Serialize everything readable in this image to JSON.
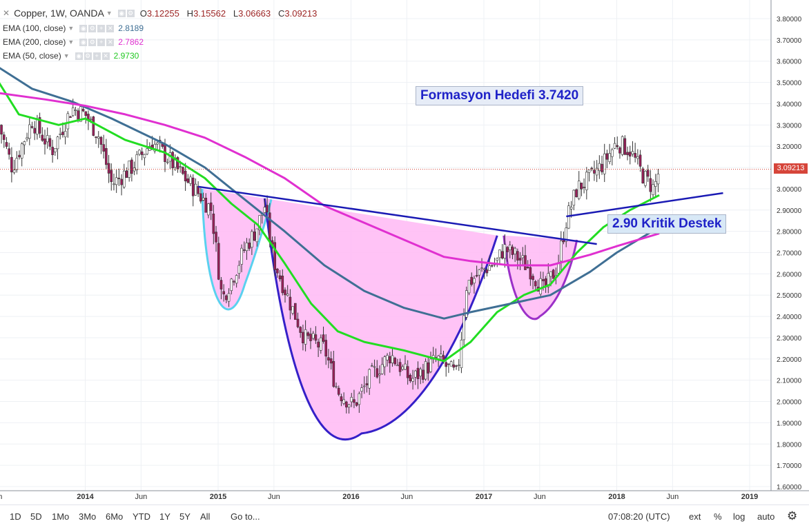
{
  "header": {
    "symbol": "Copper, 1W, OANDA",
    "ohlc": {
      "o_label": "O",
      "o": "3.12255",
      "h_label": "H",
      "h": "3.15562",
      "l_label": "L",
      "l": "3.06663",
      "c_label": "C",
      "c": "3.09213"
    }
  },
  "indicators": [
    {
      "label": "EMA (100, close)",
      "value": "2.8189",
      "color": "#3f6f94"
    },
    {
      "label": "EMA (200, close)",
      "value": "2.7862",
      "color": "#e030d0"
    },
    {
      "label": "EMA (50, close)",
      "value": "2.9730",
      "color": "#22dd22"
    }
  ],
  "annotations": {
    "target": "Formasyon Hedefi 3.7420",
    "support": "2.90 Kritik Destek"
  },
  "last_price": "3.09213",
  "toolbar": {
    "ranges": [
      "1D",
      "5D",
      "1Mo",
      "3Mo",
      "6Mo",
      "YTD",
      "1Y",
      "5Y",
      "All"
    ],
    "goto": "Go to...",
    "time": "07:08:20 (UTC)",
    "right": [
      "ext",
      "%",
      "log",
      "auto"
    ]
  },
  "colors": {
    "up_candle": "#ffffff",
    "down_candle": "#9a1f5a",
    "pattern_fill": "#ffb8f4",
    "trend_line": "#1a1ab4",
    "cup_outline": "#3520c8",
    "left_cup": "#5ad1ef",
    "handle": "#9b30c8"
  },
  "chart_data": {
    "type": "line",
    "title": "Copper, 1W, OANDA",
    "x_ticks": [
      "Jun",
      "2014",
      "Jun",
      "2015",
      "Jun",
      "2016",
      "Jun",
      "2017",
      "Jun",
      "2018",
      "Jun",
      "2019"
    ],
    "y_ticks": [
      "3.80000",
      "3.70000",
      "3.60000",
      "3.50000",
      "3.40000",
      "3.30000",
      "3.20000",
      "3.10000",
      "3.00000",
      "2.90000",
      "2.80000",
      "2.70000",
      "2.60000",
      "2.50000",
      "2.40000",
      "2.30000",
      "2.20000",
      "2.10000",
      "2.00000",
      "1.90000",
      "1.80000",
      "1.70000",
      "1.60000"
    ],
    "ylim": [
      1.6,
      3.8
    ],
    "price_close_path": [
      [
        2013.35,
        3.3
      ],
      [
        2013.45,
        3.1
      ],
      [
        2013.6,
        3.32
      ],
      [
        2013.75,
        3.18
      ],
      [
        2013.9,
        3.38
      ],
      [
        2014.0,
        3.35
      ],
      [
        2014.1,
        3.25
      ],
      [
        2014.2,
        3.02
      ],
      [
        2014.35,
        3.1
      ],
      [
        2014.5,
        3.22
      ],
      [
        2014.6,
        3.16
      ],
      [
        2014.75,
        3.05
      ],
      [
        2014.85,
        2.98
      ],
      [
        2014.95,
        2.9
      ],
      [
        2015.03,
        2.48
      ],
      [
        2015.12,
        2.6
      ],
      [
        2015.2,
        2.72
      ],
      [
        2015.28,
        2.8
      ],
      [
        2015.35,
        2.92
      ],
      [
        2015.42,
        2.66
      ],
      [
        2015.55,
        2.45
      ],
      [
        2015.65,
        2.3
      ],
      [
        2015.8,
        2.25
      ],
      [
        2015.9,
        2.05
      ],
      [
        2016.02,
        1.98
      ],
      [
        2016.15,
        2.12
      ],
      [
        2016.3,
        2.22
      ],
      [
        2016.45,
        2.1
      ],
      [
        2016.55,
        2.15
      ],
      [
        2016.65,
        2.2
      ],
      [
        2016.8,
        2.12
      ],
      [
        2016.87,
        2.55
      ],
      [
        2017.0,
        2.62
      ],
      [
        2017.1,
        2.66
      ],
      [
        2017.15,
        2.72
      ],
      [
        2017.25,
        2.68
      ],
      [
        2017.35,
        2.62
      ],
      [
        2017.45,
        2.52
      ],
      [
        2017.55,
        2.63
      ],
      [
        2017.62,
        2.85
      ],
      [
        2017.7,
        3.0
      ],
      [
        2017.8,
        3.05
      ],
      [
        2017.9,
        3.12
      ],
      [
        2018.0,
        3.22
      ],
      [
        2018.1,
        3.18
      ],
      [
        2018.2,
        3.06
      ],
      [
        2018.28,
        3.0
      ],
      [
        2018.32,
        3.09
      ]
    ],
    "series": [
      {
        "name": "EMA (50, close)",
        "color": "#22dd22",
        "points": [
          [
            2013.35,
            3.5
          ],
          [
            2013.5,
            3.35
          ],
          [
            2013.8,
            3.3
          ],
          [
            2014.0,
            3.33
          ],
          [
            2014.3,
            3.23
          ],
          [
            2014.6,
            3.17
          ],
          [
            2014.9,
            3.05
          ],
          [
            2015.1,
            2.93
          ],
          [
            2015.3,
            2.83
          ],
          [
            2015.5,
            2.65
          ],
          [
            2015.7,
            2.46
          ],
          [
            2015.9,
            2.33
          ],
          [
            2016.1,
            2.28
          ],
          [
            2016.4,
            2.24
          ],
          [
            2016.7,
            2.19
          ],
          [
            2016.9,
            2.28
          ],
          [
            2017.1,
            2.42
          ],
          [
            2017.3,
            2.5
          ],
          [
            2017.5,
            2.55
          ],
          [
            2017.7,
            2.7
          ],
          [
            2017.9,
            2.82
          ],
          [
            2018.1,
            2.9
          ],
          [
            2018.32,
            2.97
          ]
        ]
      },
      {
        "name": "EMA (100, close)",
        "color": "#3f6f94",
        "points": [
          [
            2013.35,
            3.57
          ],
          [
            2013.6,
            3.47
          ],
          [
            2013.9,
            3.41
          ],
          [
            2014.2,
            3.33
          ],
          [
            2014.6,
            3.21
          ],
          [
            2014.9,
            3.1
          ],
          [
            2015.1,
            3.0
          ],
          [
            2015.3,
            2.9
          ],
          [
            2015.5,
            2.8
          ],
          [
            2015.8,
            2.64
          ],
          [
            2016.1,
            2.52
          ],
          [
            2016.4,
            2.44
          ],
          [
            2016.7,
            2.39
          ],
          [
            2016.9,
            2.42
          ],
          [
            2017.2,
            2.46
          ],
          [
            2017.5,
            2.5
          ],
          [
            2017.8,
            2.61
          ],
          [
            2018.0,
            2.7
          ],
          [
            2018.32,
            2.82
          ]
        ]
      },
      {
        "name": "EMA (200, close)",
        "color": "#e030d0",
        "points": [
          [
            2013.35,
            3.45
          ],
          [
            2013.7,
            3.42
          ],
          [
            2014.0,
            3.39
          ],
          [
            2014.3,
            3.35
          ],
          [
            2014.6,
            3.3
          ],
          [
            2014.9,
            3.24
          ],
          [
            2015.2,
            3.15
          ],
          [
            2015.5,
            3.05
          ],
          [
            2015.8,
            2.92
          ],
          [
            2016.1,
            2.84
          ],
          [
            2016.4,
            2.76
          ],
          [
            2016.7,
            2.68
          ],
          [
            2016.9,
            2.66
          ],
          [
            2017.2,
            2.64
          ],
          [
            2017.5,
            2.64
          ],
          [
            2017.8,
            2.69
          ],
          [
            2018.0,
            2.73
          ],
          [
            2018.32,
            2.79
          ]
        ]
      }
    ],
    "trendlines": [
      {
        "from": [
          2014.85,
          3.01
        ],
        "to": [
          2017.85,
          2.74
        ]
      },
      {
        "from": [
          2017.62,
          2.87
        ],
        "to": [
          2018.8,
          2.98
        ]
      }
    ],
    "last_value": 3.09213
  }
}
